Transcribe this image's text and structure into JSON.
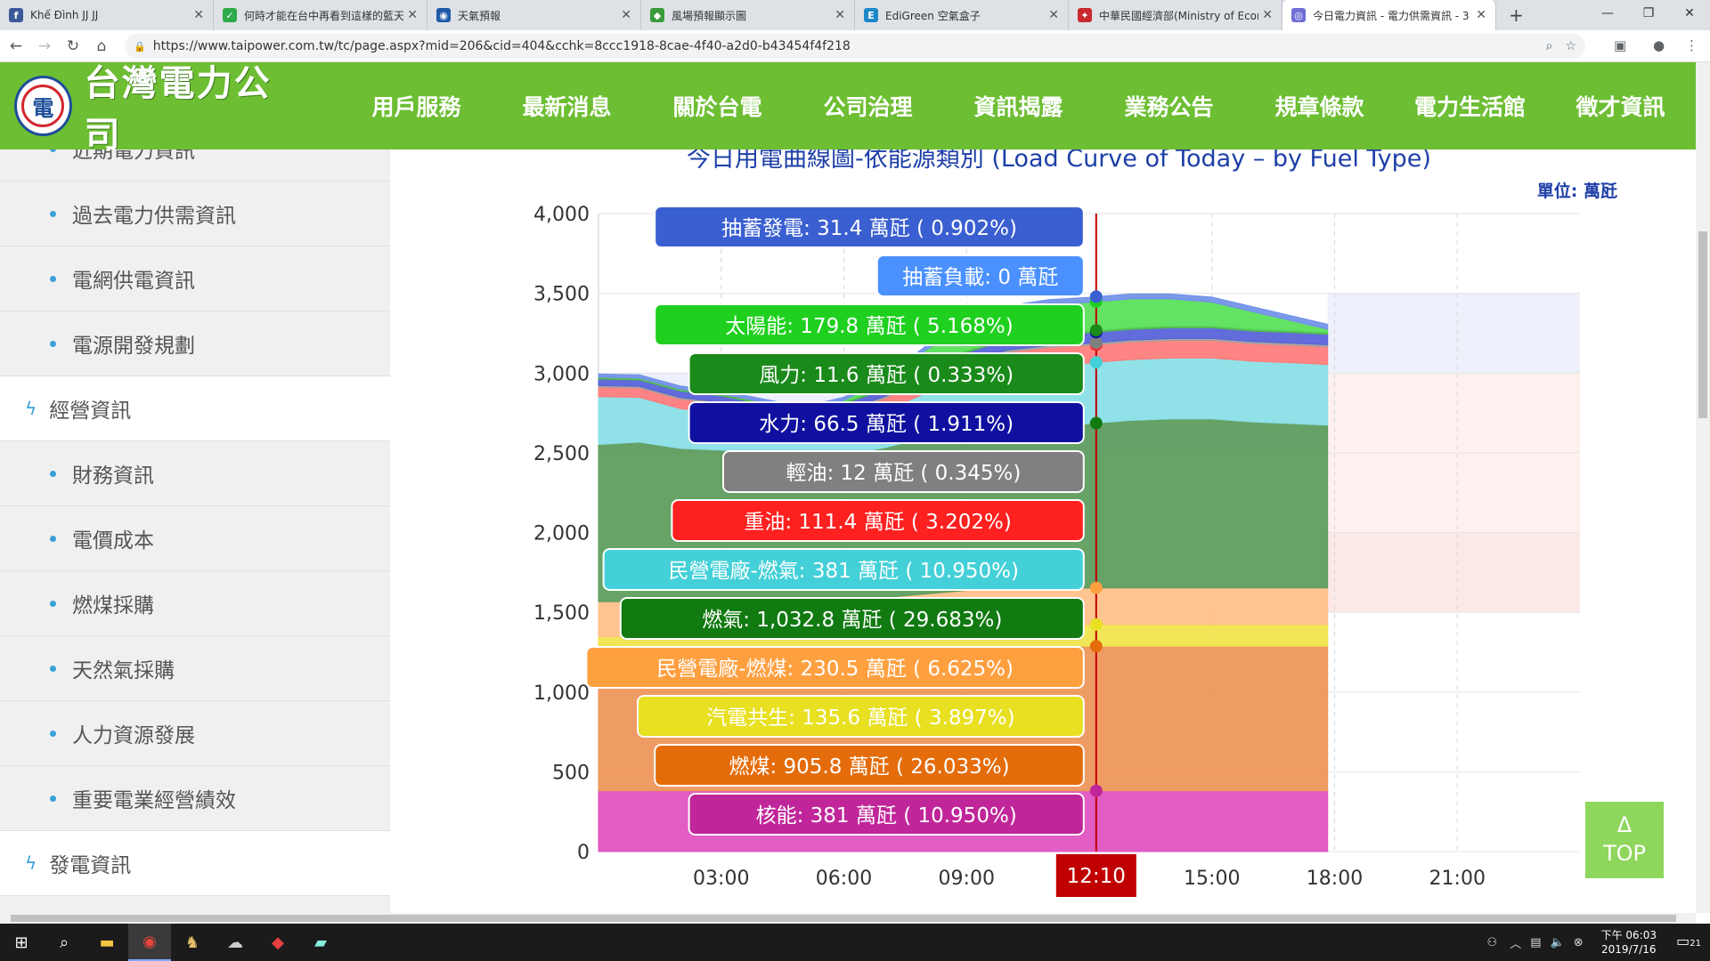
{
  "browser": {
    "tabs": [
      {
        "title": "Khế Đình JJ JJ",
        "fav": "f",
        "color": "#3b5998"
      },
      {
        "title": "何時才能在台中再看到這樣的藍天",
        "fav": "✓",
        "color": "#2eab4a"
      },
      {
        "title": "天氣預報",
        "fav": "◉",
        "color": "#1e5aa8"
      },
      {
        "title": "風場預報顯示圖",
        "fav": "◆",
        "color": "#3a9a3a"
      },
      {
        "title": "EdiGreen 空氣盒子",
        "fav": "E",
        "color": "#1e88c8"
      },
      {
        "title": "中華民國經濟部(Ministry of Econ",
        "fav": "✦",
        "color": "#c8282e"
      },
      {
        "title": "今日電力資訊 - 電力供需資訊 - 3",
        "fav": "◎",
        "color": "#6f6fd6"
      }
    ],
    "url": "https://www.taipower.com.tw/tc/page.aspx?mid=206&cid=404&cchk=8ccc1918-8cae-4f40-a2d0-b43454f4f218"
  },
  "site": {
    "logo_text": "台灣電力公司",
    "nav": [
      "用戶服務",
      "最新消息",
      "關於台電",
      "公司治理",
      "資訊揭露",
      "業務公告",
      "規章條款",
      "電力生活館",
      "徵才資訊"
    ]
  },
  "sidebar": [
    {
      "label": "近期電力資訊",
      "level": "sub"
    },
    {
      "label": "過去電力供需資訊",
      "level": "sub"
    },
    {
      "label": "電網供電資訊",
      "level": "sub"
    },
    {
      "label": "電源開發規劃",
      "level": "sub"
    },
    {
      "label": "經營資訊",
      "level": "top"
    },
    {
      "label": "財務資訊",
      "level": "sub"
    },
    {
      "label": "電價成本",
      "level": "sub"
    },
    {
      "label": "燃煤採購",
      "level": "sub"
    },
    {
      "label": "天然氣採購",
      "level": "sub"
    },
    {
      "label": "人力資源發展",
      "level": "sub"
    },
    {
      "label": "重要電業經營績效",
      "level": "sub"
    },
    {
      "label": "發電資訊",
      "level": "top"
    }
  ],
  "chart_data": {
    "type": "area",
    "title": "今日用電曲線圖-依能源類別 (Load Curve of Today – by Fuel Type)",
    "unit_label": "單位: 萬瓩",
    "ylim": [
      0,
      4000
    ],
    "yticks": [
      "0",
      "500",
      "1,000",
      "1,500",
      "2,000",
      "2,500",
      "3,000",
      "3,500",
      "4,000"
    ],
    "xlim": [
      0,
      24
    ],
    "xticks": [
      {
        "x": 3,
        "label": "03:00"
      },
      {
        "x": 6,
        "label": "06:00"
      },
      {
        "x": 9,
        "label": "09:00"
      },
      {
        "x": 15,
        "label": "15:00"
      },
      {
        "x": 18,
        "label": "18:00"
      },
      {
        "x": 21,
        "label": "21:00"
      }
    ],
    "cursor": {
      "x": 12.17,
      "label": "12:10"
    },
    "x": [
      0,
      1,
      2,
      3,
      4,
      5,
      6,
      7,
      8,
      9,
      10,
      11,
      12,
      12.17,
      12.5,
      13,
      14,
      15,
      16,
      17,
      17.83
    ],
    "series": [
      {
        "name": "核能",
        "values": [
          381,
          381,
          381,
          381,
          381,
          381,
          381,
          381,
          381,
          381,
          381,
          381,
          381,
          381,
          381,
          381,
          381,
          381,
          381,
          381,
          381
        ],
        "color": "#e04fbf",
        "dot": "#c0269a",
        "label": "核能: 381 萬瓩 ( 10.950%)"
      },
      {
        "name": "燃煤",
        "values": [
          906,
          906,
          906,
          906,
          906,
          906,
          906,
          906,
          906,
          906,
          906,
          906,
          906,
          906,
          906,
          906,
          906,
          906,
          906,
          906,
          906
        ],
        "color": "#ee9357",
        "dot": "#e46c0a",
        "label": "燃煤: 905.8 萬瓩 ( 26.033%)"
      },
      {
        "name": "汽電共生",
        "values": [
          60,
          60,
          60,
          60,
          60,
          60,
          60,
          80,
          100,
          120,
          130,
          134,
          135,
          136,
          136,
          136,
          136,
          136,
          136,
          136,
          136
        ],
        "color": "#f0e34a",
        "dot": "#e8e020",
        "label": "汽電共生: 135.6 萬瓩 ( 3.897%)"
      },
      {
        "name": "民營電廠-燃煤",
        "values": [
          220,
          220,
          220,
          220,
          220,
          220,
          220,
          225,
          228,
          230,
          230,
          230,
          230,
          230,
          230,
          230,
          230,
          230,
          230,
          230,
          230
        ],
        "color": "#ffbf85",
        "dot": "#ffa040",
        "label": "民營電廠-燃煤: 230.5 萬瓩 ( 6.625%)"
      },
      {
        "name": "燃氣",
        "values": [
          985,
          1000,
          960,
          950,
          930,
          900,
          920,
          940,
          980,
          990,
          1010,
          1020,
          1030,
          1033,
          1040,
          1050,
          1060,
          1060,
          1040,
          1030,
          1020
        ],
        "color": "#5a9a5a",
        "dot": "#117a11",
        "label": "燃氣: 1,032.8 萬瓩 ( 29.683%)"
      },
      {
        "name": "民營電廠-燃氣",
        "values": [
          300,
          280,
          250,
          230,
          200,
          180,
          200,
          230,
          280,
          330,
          370,
          380,
          381,
          381,
          381,
          381,
          381,
          381,
          381,
          381,
          381
        ],
        "color": "#88e0e6",
        "dot": "#44d0d8",
        "label": "民營電廠-燃氣: 381 萬瓩 ( 10.950%)"
      },
      {
        "name": "重油",
        "values": [
          60,
          60,
          60,
          60,
          60,
          60,
          70,
          80,
          90,
          100,
          105,
          110,
          111,
          111,
          111,
          111,
          111,
          111,
          111,
          111,
          111
        ],
        "color": "#ff7a7a",
        "dot": "#ff2020",
        "label": "重油: 111.4 萬瓩 ( 3.202%)"
      },
      {
        "name": "輕油",
        "values": [
          10,
          10,
          10,
          10,
          10,
          10,
          10,
          11,
          12,
          12,
          12,
          12,
          12,
          12,
          12,
          12,
          12,
          12,
          12,
          12,
          12
        ],
        "color": "#a0a0a0",
        "dot": "#808080",
        "label": "輕油: 12 萬瓩 ( 0.345%)"
      },
      {
        "name": "水力",
        "values": [
          40,
          40,
          40,
          40,
          40,
          40,
          40,
          45,
          55,
          60,
          64,
          66,
          66,
          66,
          66,
          66,
          66,
          66,
          66,
          66,
          66
        ],
        "color": "#5560d8",
        "dot": "#1010a0",
        "label": "水力: 66.5 萬瓩 ( 1.911%)"
      },
      {
        "name": "風力",
        "values": [
          12,
          12,
          12,
          12,
          12,
          12,
          12,
          12,
          12,
          12,
          12,
          12,
          12,
          12,
          12,
          12,
          12,
          12,
          12,
          12,
          12
        ],
        "color": "#4fb84f",
        "dot": "#1a8a1a",
        "label": "風力: 11.6 萬瓩 ( 0.333%)"
      },
      {
        "name": "太陽能",
        "values": [
          0,
          0,
          0,
          0,
          0,
          0,
          10,
          40,
          100,
          150,
          170,
          178,
          180,
          180,
          180,
          180,
          170,
          150,
          110,
          60,
          20
        ],
        "color": "#56e056",
        "dot": "#1fd01f",
        "label": "太陽能: 179.8 萬瓩 ( 5.168%)"
      },
      {
        "name": "抽蓄負載",
        "values": [
          0,
          0,
          0,
          0,
          0,
          0,
          0,
          0,
          0,
          0,
          0,
          0,
          0,
          0,
          0,
          0,
          0,
          0,
          0,
          0,
          0
        ],
        "color": "#7fb0ff",
        "dot": "#4a90ff",
        "label": "抽蓄負載: 0 萬瓩"
      },
      {
        "name": "抽蓄發電",
        "values": [
          20,
          20,
          20,
          20,
          20,
          20,
          20,
          20,
          25,
          30,
          31,
          31,
          31,
          31,
          31,
          31,
          31,
          31,
          31,
          31,
          31
        ],
        "color": "#7090e8",
        "dot": "#3a5fd0",
        "label": "抽蓄發電: 31.4 萬瓩 ( 0.902%)"
      }
    ]
  },
  "top_button": {
    "arrow": "Δ",
    "label": "TOP"
  },
  "taskbar": {
    "time": "下午 06:03",
    "date": "2019/7/16",
    "notif": "21"
  }
}
